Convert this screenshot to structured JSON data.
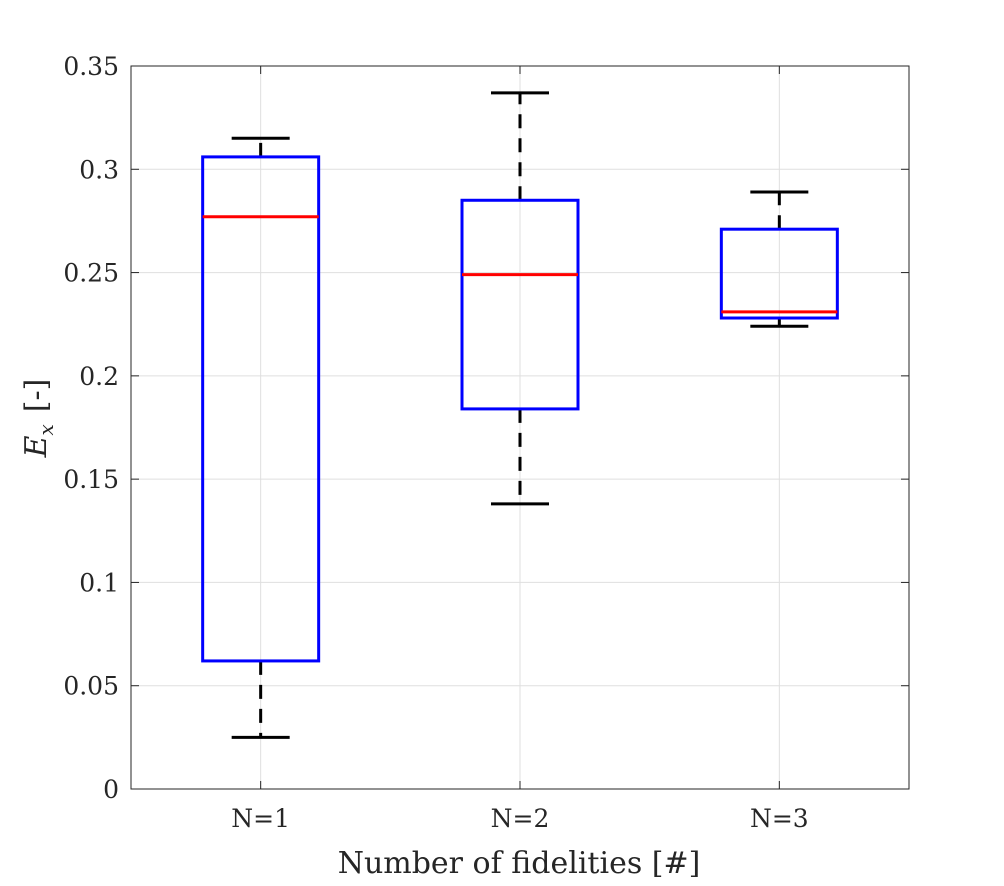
{
  "chart_data": {
    "type": "box",
    "title": "",
    "xlabel": "Number of fidelities [#]",
    "ylabel": {
      "symbol": "E",
      "subscript": "x",
      "unit": "[-]"
    },
    "ylim": [
      0,
      0.35
    ],
    "yticks": [
      0,
      0.05,
      0.1,
      0.15,
      0.2,
      0.25,
      0.3,
      0.35
    ],
    "ytick_labels": [
      "0",
      "0.05",
      "0.1",
      "0.15",
      "0.2",
      "0.25",
      "0.3",
      "0.35"
    ],
    "grid": true,
    "categories": [
      "N=1",
      "N=2",
      "N=3"
    ],
    "boxes": [
      {
        "label": "N=1",
        "min": 0.025,
        "q1": 0.062,
        "median": 0.277,
        "q3": 0.306,
        "max": 0.315
      },
      {
        "label": "N=2",
        "min": 0.138,
        "q1": 0.184,
        "median": 0.249,
        "q3": 0.285,
        "max": 0.337
      },
      {
        "label": "N=3",
        "min": 0.224,
        "q1": 0.228,
        "median": 0.231,
        "q3": 0.271,
        "max": 0.289
      }
    ],
    "colors": {
      "box": "#0000ff",
      "median": "#ff0000",
      "whisker": "#000000",
      "grid": "#dfdfdf",
      "axis": "#262626"
    }
  }
}
